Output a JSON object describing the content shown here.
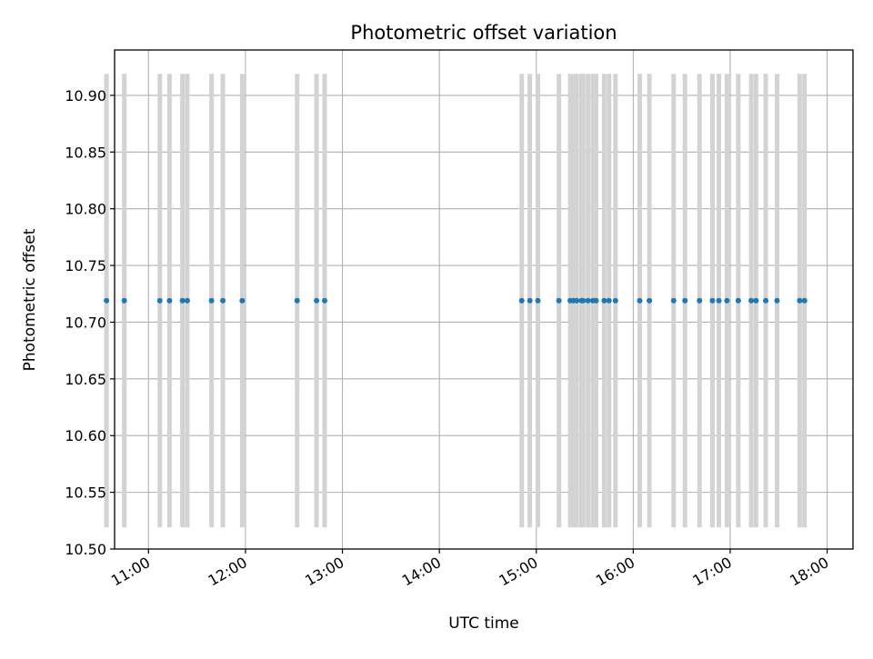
{
  "chart_data": {
    "type": "scatter",
    "title": "Photometric offset variation",
    "xlabel": "UTC time",
    "ylabel": "Photometric offset",
    "grid": true,
    "legend": "none",
    "x_unit": "hours UTC",
    "xlim": [
      "10:39",
      "18:16"
    ],
    "ylim": [
      10.5,
      10.94
    ],
    "x_ticks": [
      "11:00",
      "12:00",
      "13:00",
      "14:00",
      "15:00",
      "16:00",
      "17:00",
      "18:00"
    ],
    "y_ticks": [
      "10.50",
      "10.55",
      "10.60",
      "10.65",
      "10.70",
      "10.75",
      "10.80",
      "10.85",
      "10.90"
    ],
    "colors": {
      "points": "#1f77b4",
      "error_bars": "#d3d3d3",
      "grid": "#b0b0b0"
    },
    "series": [
      {
        "x": [
          "10:34",
          "10:45",
          "11:07",
          "11:13",
          "11:21",
          "11:24",
          "11:39",
          "11:46",
          "11:58",
          "12:32",
          "12:44",
          "12:49",
          "14:51",
          "14:56",
          "15:01",
          "15:14",
          "15:21",
          "15:23",
          "15:25",
          "15:28",
          "15:29",
          "15:32",
          "15:35",
          "15:37",
          "15:42",
          "15:45",
          "15:49",
          "16:04",
          "16:10",
          "16:25",
          "16:32",
          "16:41",
          "16:49",
          "16:53",
          "16:58",
          "17:05",
          "17:13",
          "17:16",
          "17:22",
          "17:29",
          "17:43",
          "17:46"
        ],
        "y": [
          10.719,
          10.719,
          10.719,
          10.719,
          10.719,
          10.719,
          10.719,
          10.719,
          10.719,
          10.719,
          10.719,
          10.719,
          10.719,
          10.719,
          10.719,
          10.719,
          10.719,
          10.719,
          10.719,
          10.719,
          10.719,
          10.719,
          10.719,
          10.719,
          10.719,
          10.719,
          10.719,
          10.719,
          10.719,
          10.719,
          10.719,
          10.719,
          10.719,
          10.719,
          10.719,
          10.719,
          10.719,
          10.719,
          10.719,
          10.719,
          10.719,
          10.719
        ],
        "error_low": 10.519,
        "error_high": 10.919
      }
    ]
  }
}
